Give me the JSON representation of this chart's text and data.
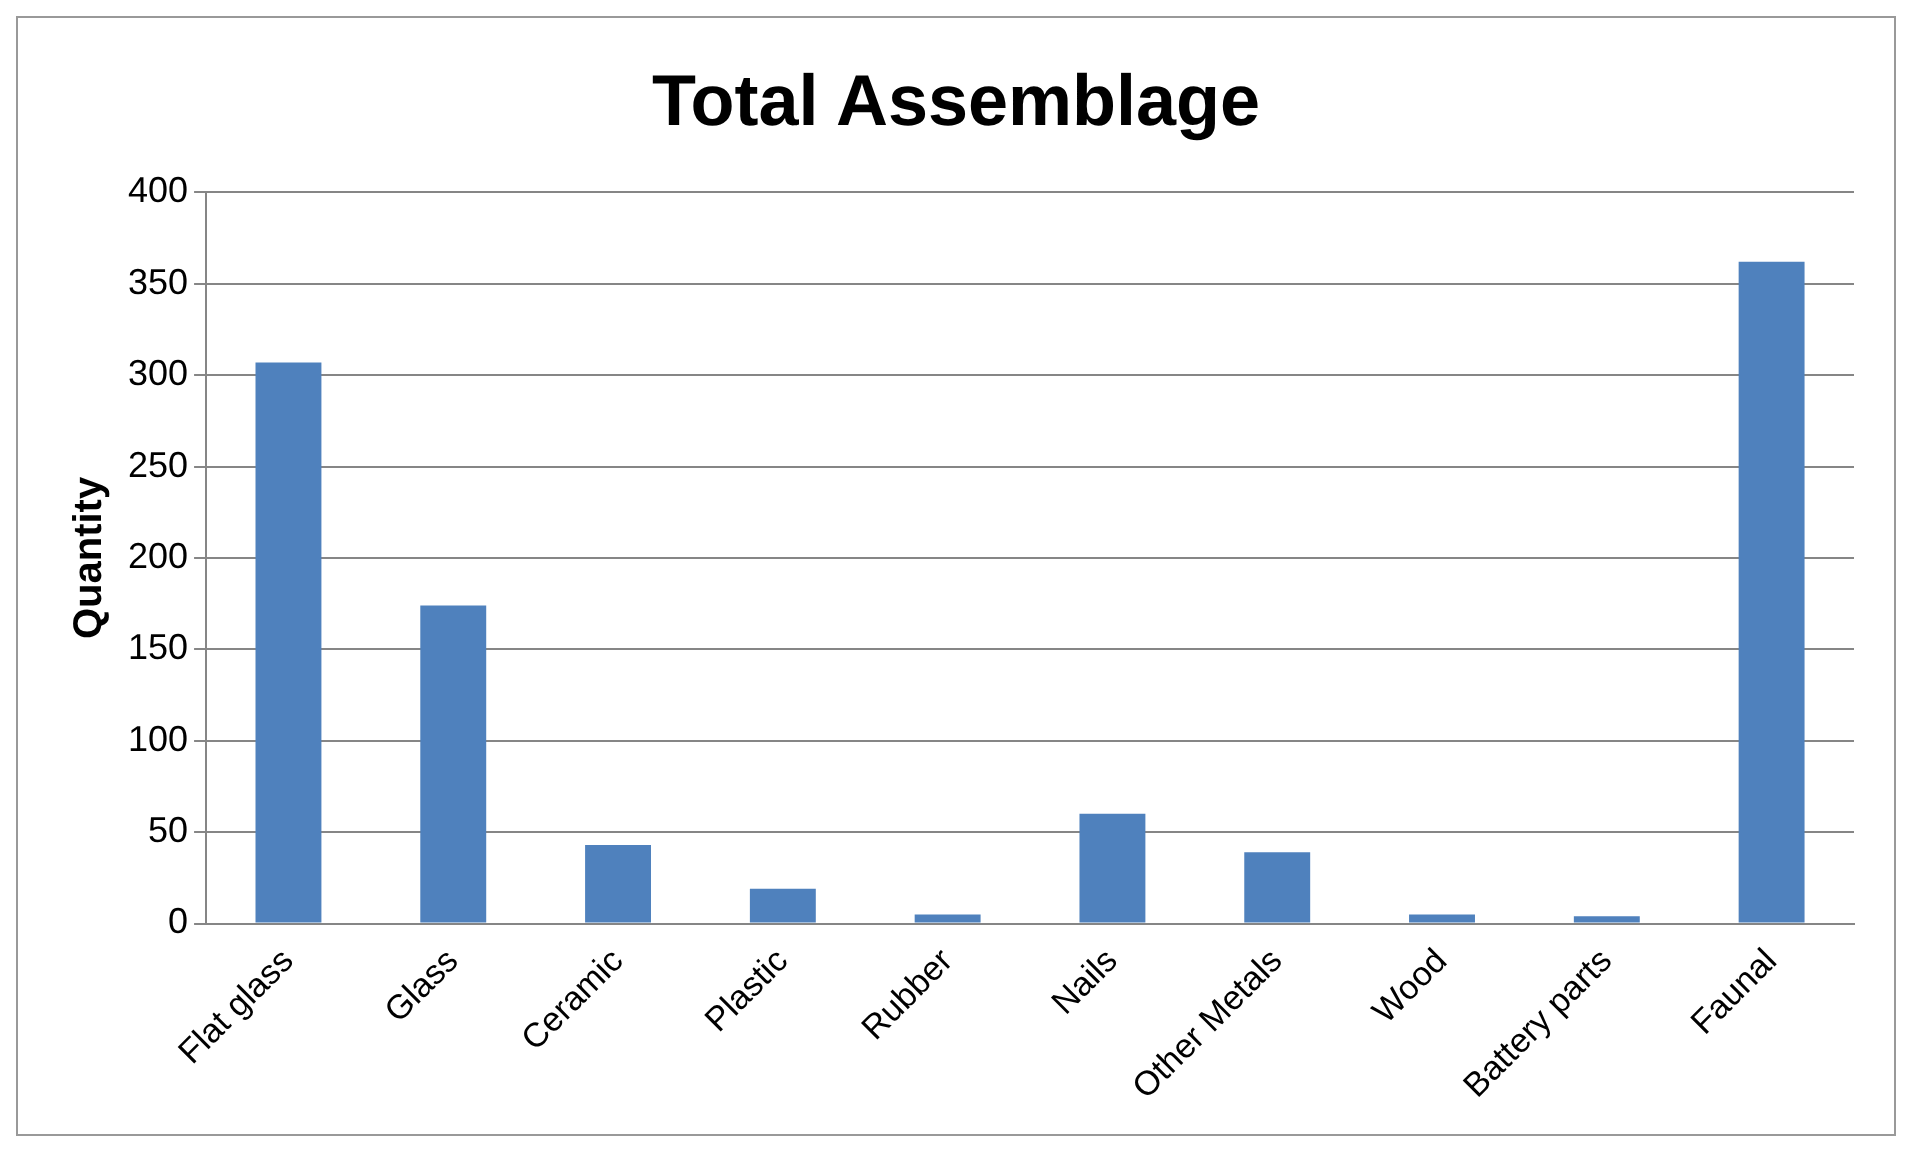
{
  "chart_data": {
    "type": "bar",
    "title": "Total Assemblage",
    "ylabel": "Quantity",
    "categories": [
      "Flat glass",
      "Glass",
      "Ceramic",
      "Plastic",
      "Rubber",
      "Nails",
      "Other Metals",
      "Wood",
      "Battery parts",
      "Faunal"
    ],
    "values": [
      307,
      174,
      43,
      19,
      5,
      60,
      39,
      5,
      4,
      362
    ],
    "color": "#4f81bd",
    "ylim": [
      0,
      400
    ],
    "yticks": [
      0,
      50,
      100,
      150,
      200,
      250,
      300,
      350,
      400
    ],
    "grid": "y",
    "legend": false
  }
}
